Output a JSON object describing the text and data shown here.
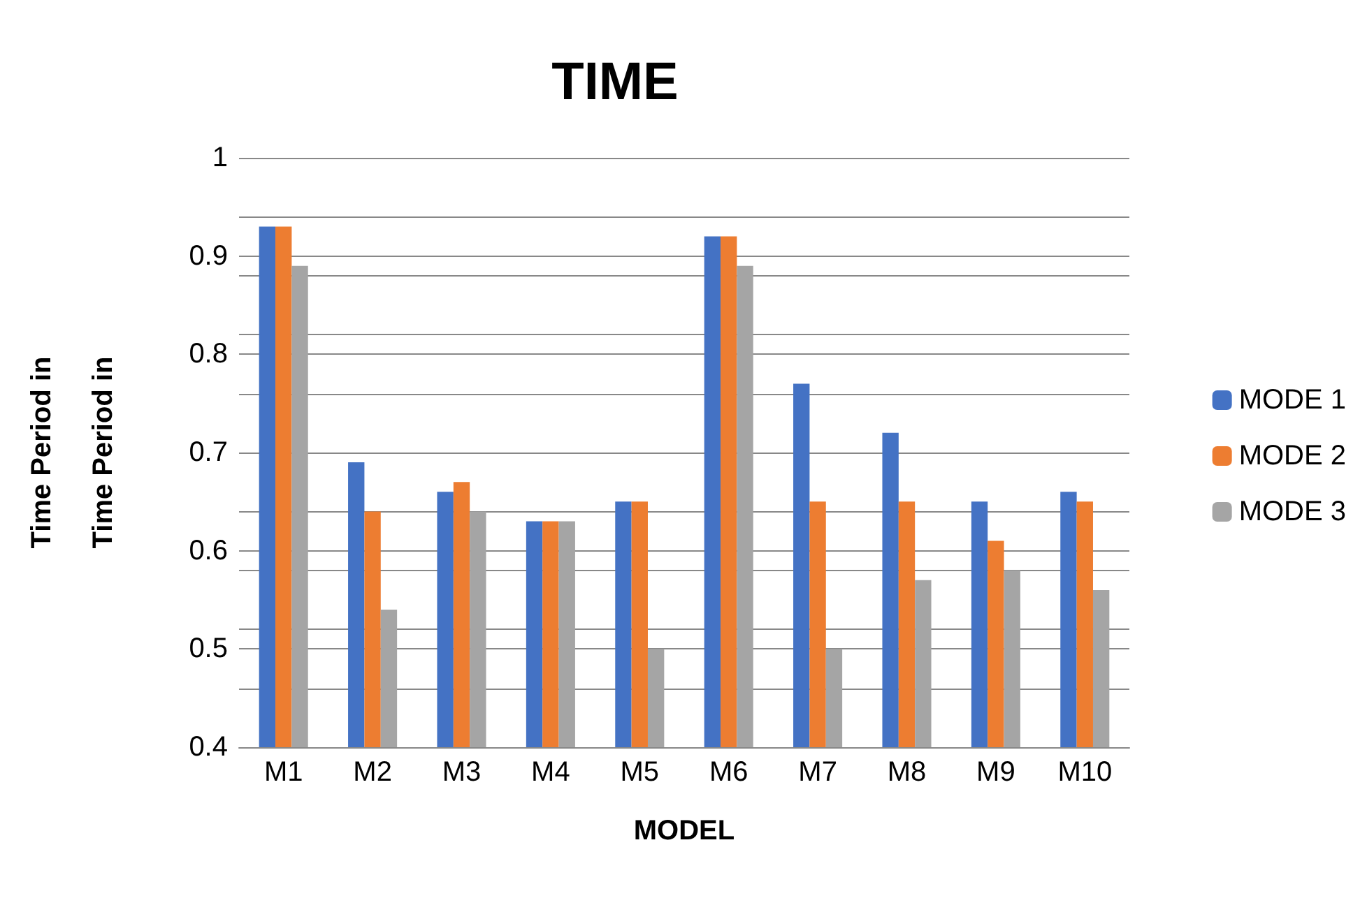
{
  "chart_data": {
    "type": "bar",
    "title": "TIME",
    "xlabel": "MODEL",
    "ylabel": "Time Period in\nTime Period in",
    "categories": [
      "M1",
      "M2",
      "M3",
      "M4",
      "M5",
      "M6",
      "M7",
      "M8",
      "M9",
      "M10"
    ],
    "series": [
      {
        "name": "MODE 1",
        "color": "#4472c4",
        "values": [
          0.93,
          0.69,
          0.66,
          0.63,
          0.65,
          0.92,
          0.77,
          0.72,
          0.65,
          0.66
        ]
      },
      {
        "name": "MODE 2",
        "color": "#ed7d31",
        "values": [
          0.93,
          0.64,
          0.67,
          0.63,
          0.65,
          0.92,
          0.65,
          0.65,
          0.61,
          0.65
        ]
      },
      {
        "name": "MODE 3",
        "color": "#a5a5a5",
        "values": [
          0.89,
          0.54,
          0.64,
          0.63,
          0.5,
          0.89,
          0.5,
          0.57,
          0.58,
          0.56
        ]
      }
    ],
    "ylim": [
      0.4,
      1
    ],
    "yticks": [
      0.4,
      {
        "value": 0.46,
        "label": null
      },
      0.5,
      {
        "value": 0.52,
        "label": null
      },
      {
        "value": 0.58,
        "label": null
      },
      0.6,
      {
        "value": 0.64,
        "label": null
      },
      0.7,
      {
        "value": 0.76,
        "label": null
      },
      0.8,
      {
        "value": 0.82,
        "label": null
      },
      {
        "value": 0.88,
        "label": null
      },
      0.9,
      {
        "value": 0.94,
        "label": null
      },
      1
    ],
    "grid": "y",
    "legend": "right"
  }
}
